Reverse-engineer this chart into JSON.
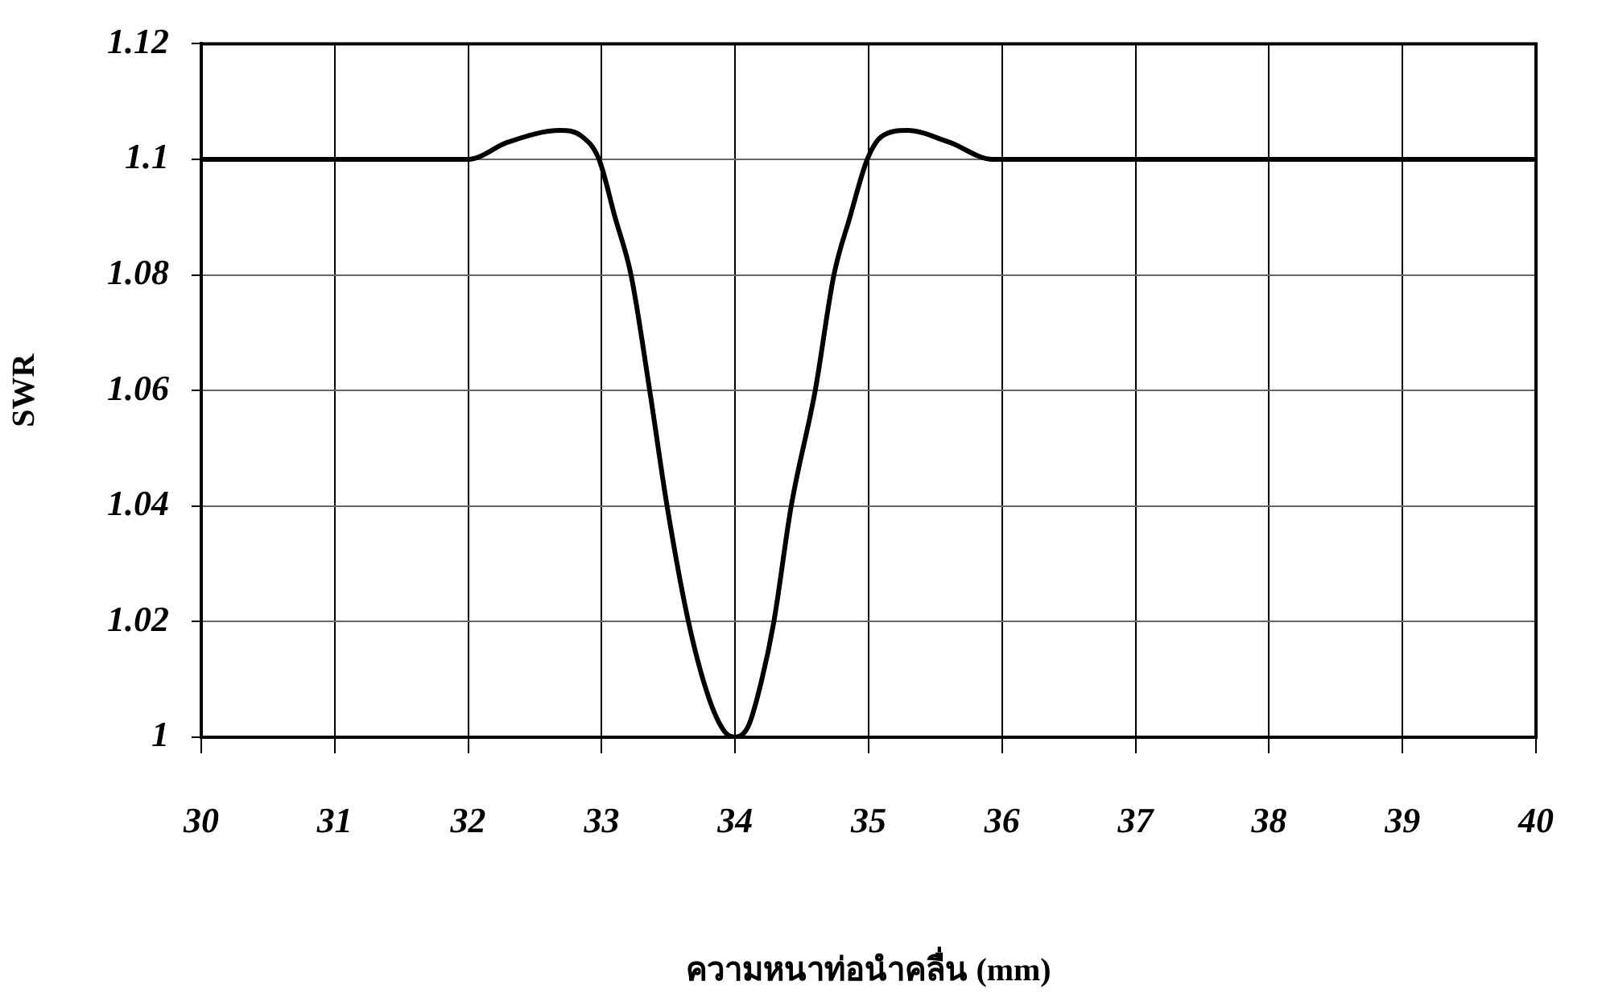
{
  "chart_data": {
    "type": "line",
    "xlabel": "ความหนาท่อนำคลื่น (mm)",
    "ylabel": "SWR",
    "x": [
      30,
      32,
      32.3,
      32.69,
      32.85,
      32.98,
      33.1,
      33.22,
      33.36,
      33.49,
      33.65,
      33.8,
      33.92,
      34,
      34.1,
      34.2,
      34.29,
      34.42,
      34.6,
      34.74,
      34.86,
      34.99,
      35.1,
      35.29,
      35.6,
      35.93,
      40
    ],
    "series": [
      {
        "color": "#000000",
        "values": [
          1.1,
          1.1,
          1.103,
          1.105,
          1.104,
          1.1,
          1.09,
          1.08,
          1.06,
          1.04,
          1.02,
          1.007,
          1.001,
          1.0,
          1.002,
          1.01,
          1.02,
          1.04,
          1.06,
          1.08,
          1.09,
          1.1,
          1.104,
          1.105,
          1.103,
          1.1,
          1.1
        ]
      }
    ],
    "xlim": [
      30,
      40
    ],
    "xticks": [
      30,
      31,
      32,
      33,
      34,
      35,
      36,
      37,
      38,
      39,
      40
    ],
    "ylim": [
      1,
      1.12
    ],
    "yticks": [
      {
        "value": 1,
        "label": "1"
      },
      1.02,
      1.04,
      1.06,
      1.08,
      {
        "value": 1.1,
        "label": "1.1"
      },
      1.12
    ],
    "grid": true,
    "legend": false,
    "marker": "none",
    "line_style": "solid"
  }
}
